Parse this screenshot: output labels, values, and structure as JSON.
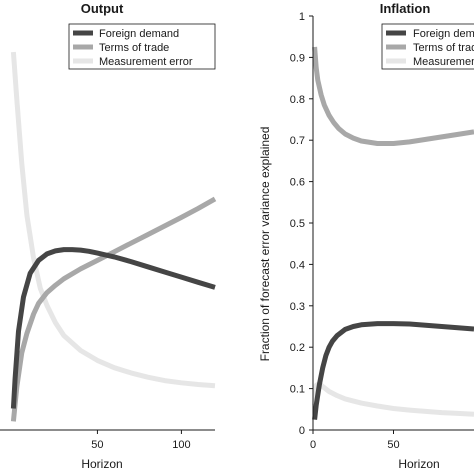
{
  "chart_data": [
    {
      "type": "line",
      "title": "Output",
      "xlabel": "Horizon",
      "ylabel": "",
      "xlim": [
        -8,
        120
      ],
      "ylim": [
        0,
        0.95
      ],
      "xticks": [
        "50",
        "100"
      ],
      "yticks": [],
      "legend_position": "top-right",
      "series": [
        {
          "name": "Foreign demand",
          "color": "#454545",
          "x": [
            0,
            1,
            3,
            6,
            10,
            15,
            20,
            25,
            30,
            35,
            40,
            45,
            50,
            60,
            70,
            80,
            90,
            100,
            110,
            120
          ],
          "y": [
            0.05,
            0.12,
            0.23,
            0.31,
            0.365,
            0.395,
            0.41,
            0.417,
            0.42,
            0.42,
            0.419,
            0.416,
            0.412,
            0.403,
            0.392,
            0.38,
            0.368,
            0.356,
            0.344,
            0.332
          ]
        },
        {
          "name": "Terms of trade",
          "color": "#a8a8a8",
          "x": [
            0,
            2,
            5,
            8,
            12,
            15,
            20,
            25,
            30,
            40,
            50,
            60,
            70,
            80,
            90,
            100,
            110,
            120
          ],
          "y": [
            0.02,
            0.1,
            0.18,
            0.225,
            0.27,
            0.295,
            0.32,
            0.337,
            0.352,
            0.375,
            0.395,
            0.415,
            0.435,
            0.455,
            0.475,
            0.495,
            0.516,
            0.538
          ]
        },
        {
          "name": "Measurement error",
          "color": "#e6e6e6",
          "x": [
            0,
            2,
            5,
            8,
            12,
            16,
            20,
            25,
            30,
            40,
            50,
            60,
            70,
            80,
            90,
            100,
            110,
            120
          ],
          "y": [
            0.88,
            0.77,
            0.62,
            0.5,
            0.4,
            0.33,
            0.29,
            0.25,
            0.22,
            0.185,
            0.162,
            0.145,
            0.133,
            0.123,
            0.115,
            0.11,
            0.106,
            0.103
          ]
        }
      ]
    },
    {
      "type": "line",
      "title": "Inflation",
      "xlabel": "Horizon",
      "ylabel": "Fraction of forecast error variance explained",
      "xlim": [
        0,
        100
      ],
      "ylim": [
        0,
        1.0
      ],
      "xticks": [
        "0",
        "50"
      ],
      "yticks": [
        "0",
        "0.1",
        "0.2",
        "0.3",
        "0.4",
        "0.5",
        "0.6",
        "0.7",
        "0.8",
        "0.9",
        "1"
      ],
      "legend_position": "top-right",
      "series": [
        {
          "name": "Foreign demand",
          "color": "#454545",
          "x": [
            1,
            2,
            4,
            6,
            8,
            10,
            12,
            15,
            20,
            25,
            30,
            40,
            50,
            60,
            70,
            80,
            90,
            100
          ],
          "y": [
            0.025,
            0.06,
            0.11,
            0.15,
            0.18,
            0.2,
            0.214,
            0.228,
            0.243,
            0.25,
            0.254,
            0.257,
            0.257,
            0.256,
            0.253,
            0.25,
            0.247,
            0.244
          ]
        },
        {
          "name": "Terms of trade",
          "color": "#a8a8a8",
          "x": [
            1,
            2,
            3,
            5,
            7,
            10,
            13,
            16,
            20,
            25,
            30,
            40,
            50,
            60,
            70,
            80,
            90,
            100
          ],
          "y": [
            0.925,
            0.875,
            0.845,
            0.81,
            0.785,
            0.76,
            0.742,
            0.728,
            0.715,
            0.705,
            0.698,
            0.692,
            0.692,
            0.696,
            0.702,
            0.708,
            0.714,
            0.72
          ]
        },
        {
          "name": "Measurement error",
          "color": "#e6e6e6",
          "x": [
            1,
            2,
            4,
            6,
            10,
            15,
            20,
            30,
            40,
            50,
            60,
            70,
            80,
            90,
            100
          ],
          "y": [
            0.06,
            0.108,
            0.112,
            0.105,
            0.093,
            0.083,
            0.075,
            0.065,
            0.058,
            0.052,
            0.048,
            0.045,
            0.042,
            0.04,
            0.038
          ]
        }
      ]
    }
  ]
}
